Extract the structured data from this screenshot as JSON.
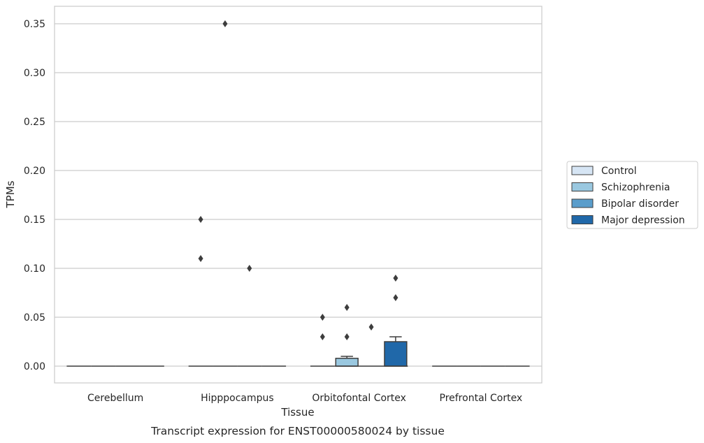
{
  "chart_data": {
    "type": "box",
    "xlabel": "Tissue",
    "ylabel": "TPMs",
    "caption": "Transcript expression for ENST00000580024 by tissue",
    "ylim": [
      -0.017,
      0.367
    ],
    "yticks": [
      0.0,
      0.05,
      0.1,
      0.15,
      0.2,
      0.25,
      0.3,
      0.35
    ],
    "ytick_labels": [
      "0.00",
      "0.05",
      "0.10",
      "0.15",
      "0.20",
      "0.25",
      "0.30",
      "0.35"
    ],
    "grid": "horizontal",
    "legend_position": "right",
    "categories": [
      "Cerebellum",
      "Hipppocampus",
      "Orbitofontal Cortex",
      "Prefrontal Cortex"
    ],
    "series": [
      {
        "name": "Control",
        "color": "#d6e5f4",
        "boxes": [
          {
            "q1": 0,
            "median": 0,
            "q3": 0,
            "whisker_low": 0,
            "whisker_high": 0,
            "outliers": []
          },
          {
            "q1": 0,
            "median": 0,
            "q3": 0,
            "whisker_low": 0,
            "whisker_high": 0,
            "outliers": [
              0.15,
              0.11
            ]
          },
          {
            "q1": 0,
            "median": 0,
            "q3": 0,
            "whisker_low": 0,
            "whisker_high": 0,
            "outliers": [
              0.05,
              0.03
            ]
          },
          {
            "q1": 0,
            "median": 0,
            "q3": 0,
            "whisker_low": 0,
            "whisker_high": 0,
            "outliers": []
          }
        ]
      },
      {
        "name": "Schizophrenia",
        "color": "#9ac8e0",
        "boxes": [
          {
            "q1": 0,
            "median": 0,
            "q3": 0,
            "whisker_low": 0,
            "whisker_high": 0,
            "outliers": []
          },
          {
            "q1": 0,
            "median": 0,
            "q3": 0,
            "whisker_low": 0,
            "whisker_high": 0,
            "outliers": [
              0.35
            ]
          },
          {
            "q1": 0,
            "median": 0,
            "q3": 0.008,
            "whisker_low": 0,
            "whisker_high": 0.01,
            "outliers": [
              0.06,
              0.03
            ]
          },
          {
            "q1": 0,
            "median": 0,
            "q3": 0,
            "whisker_low": 0,
            "whisker_high": 0,
            "outliers": []
          }
        ]
      },
      {
        "name": "Bipolar disorder",
        "color": "#5a9dcb",
        "boxes": [
          {
            "q1": 0,
            "median": 0,
            "q3": 0,
            "whisker_low": 0,
            "whisker_high": 0,
            "outliers": []
          },
          {
            "q1": 0,
            "median": 0,
            "q3": 0,
            "whisker_low": 0,
            "whisker_high": 0,
            "outliers": [
              0.1
            ]
          },
          {
            "q1": 0,
            "median": 0,
            "q3": 0,
            "whisker_low": 0,
            "whisker_high": 0,
            "outliers": [
              0.04
            ]
          },
          {
            "q1": 0,
            "median": 0,
            "q3": 0,
            "whisker_low": 0,
            "whisker_high": 0,
            "outliers": []
          }
        ]
      },
      {
        "name": "Major depression",
        "color": "#2068a9",
        "boxes": [
          {
            "q1": 0,
            "median": 0,
            "q3": 0,
            "whisker_low": 0,
            "whisker_high": 0,
            "outliers": []
          },
          {
            "q1": 0,
            "median": 0,
            "q3": 0,
            "whisker_low": 0,
            "whisker_high": 0,
            "outliers": []
          },
          {
            "q1": 0,
            "median": 0,
            "q3": 0.025,
            "whisker_low": 0,
            "whisker_high": 0.03,
            "outliers": [
              0.09,
              0.07
            ]
          },
          {
            "q1": 0,
            "median": 0,
            "q3": 0,
            "whisker_low": 0,
            "whisker_high": 0,
            "outliers": []
          }
        ]
      }
    ]
  }
}
